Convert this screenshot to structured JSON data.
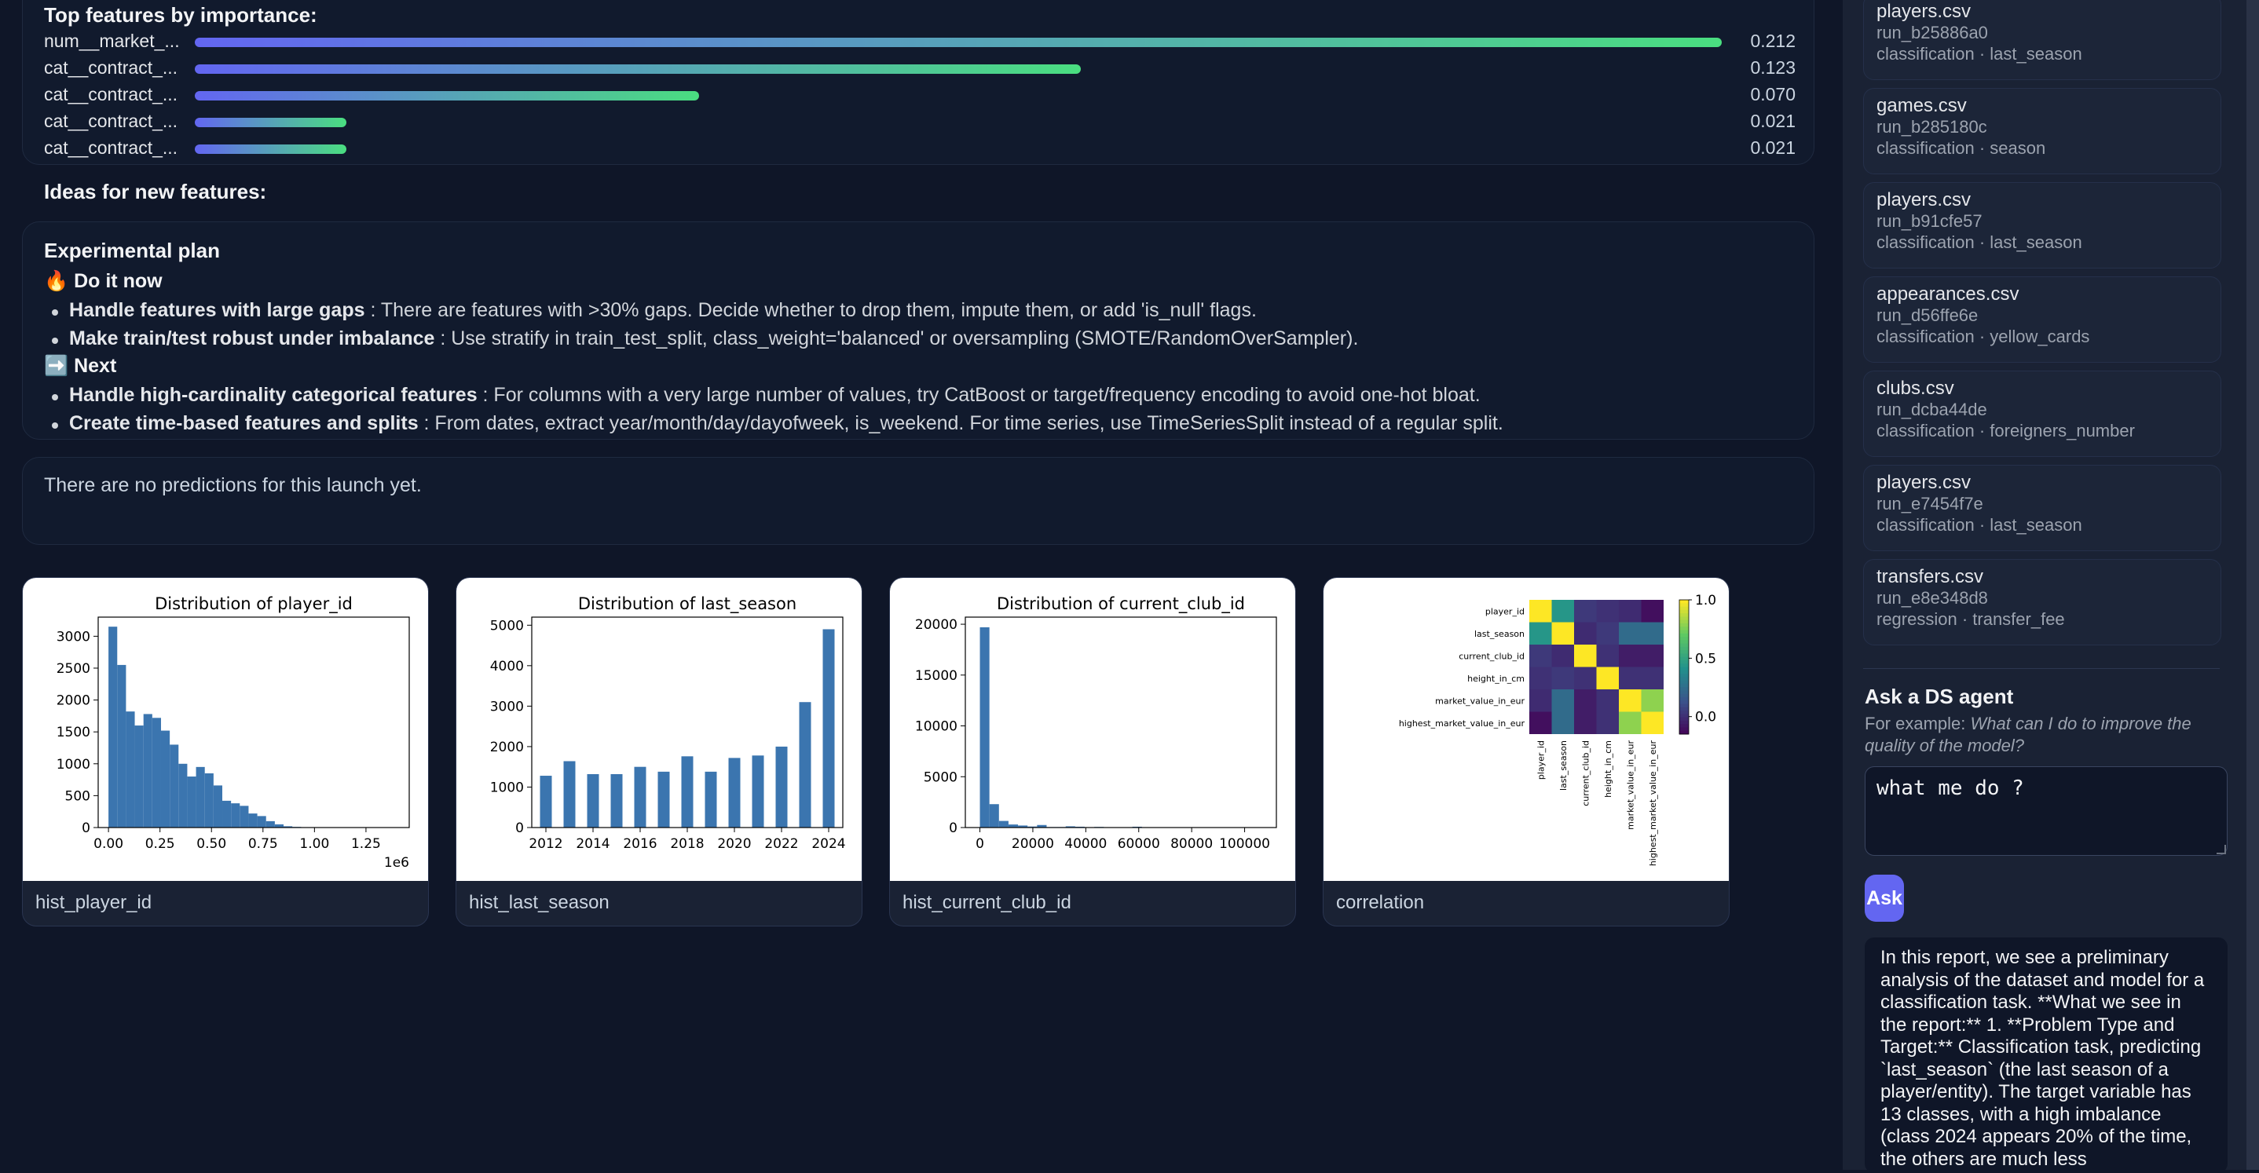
{
  "features": {
    "title": "Top features by importance:",
    "items": [
      {
        "name": "num__market_...",
        "value": "0.212",
        "frac": 0.212
      },
      {
        "name": "cat__contract_...",
        "value": "0.123",
        "frac": 0.123
      },
      {
        "name": "cat__contract_...",
        "value": "0.070",
        "frac": 0.07
      },
      {
        "name": "cat__contract_...",
        "value": "0.021",
        "frac": 0.021
      },
      {
        "name": "cat__contract_...",
        "value": "0.021",
        "frac": 0.021
      }
    ],
    "ideas_title": "Ideas for new features:"
  },
  "plan": {
    "title": "Experimental plan",
    "now_icon": "🔥",
    "now_label": "Do it now",
    "now_items": [
      {
        "bold": "Handle features with large gaps",
        "text": " : There are features with >30% gaps. Decide whether to drop them, impute them, or add 'is_null' flags."
      },
      {
        "bold": "Make train/test robust under imbalance",
        "text": " : Use stratify in train_test_split, class_weight='balanced' or oversampling (SMOTE/RandomOverSampler)."
      }
    ],
    "next_icon": "➡️",
    "next_label": "Next",
    "next_items": [
      {
        "bold": "Handle high-cardinality categorical features",
        "text": " : For columns with a very large number of values, try CatBoost or target/frequency encoding to avoid one-hot bloat."
      },
      {
        "bold": "Create time-based features and splits",
        "text": " : From dates, extract year/month/day/dayofweek, is_weekend. For time series, use TimeSeriesSplit instead of a regular split."
      }
    ]
  },
  "predictions": {
    "empty_text": "There are no predictions for this launch yet."
  },
  "charts": [
    {
      "caption": "hist_player_id"
    },
    {
      "caption": "hist_last_season"
    },
    {
      "caption": "hist_current_club_id"
    },
    {
      "caption": "correlation"
    }
  ],
  "chart_data": [
    {
      "type": "bar",
      "title": "Distribution of player_id",
      "x_offset_label": "1e6",
      "xlim": [
        -0.05,
        1.46
      ],
      "ylim": [
        0,
        3300
      ],
      "xticks": [
        "0.00",
        "0.25",
        "0.50",
        "0.75",
        "1.00",
        "1.25"
      ],
      "xtick_values": [
        0,
        0.25,
        0.5,
        0.75,
        1.0,
        1.25
      ],
      "yticks": [
        "0",
        "500",
        "1000",
        "1500",
        "2000",
        "2500",
        "3000"
      ],
      "ytick_values": [
        0,
        500,
        1000,
        1500,
        2000,
        2500,
        3000
      ],
      "bin_start": 0.0,
      "bin_width": 0.0425,
      "values": [
        3150,
        2550,
        1820,
        1600,
        1780,
        1720,
        1520,
        1300,
        1000,
        800,
        950,
        850,
        660,
        420,
        380,
        340,
        220,
        180,
        100,
        50,
        20,
        10,
        5
      ]
    },
    {
      "type": "bar",
      "title": "Distribution of last_season",
      "xlim": [
        2011.4,
        2024.6
      ],
      "ylim": [
        0,
        5200
      ],
      "xticks": [
        "2012",
        "2014",
        "2016",
        "2018",
        "2020",
        "2022",
        "2024"
      ],
      "xtick_values": [
        2012,
        2014,
        2016,
        2018,
        2020,
        2022,
        2024
      ],
      "yticks": [
        "0",
        "1000",
        "2000",
        "3000",
        "4000",
        "5000"
      ],
      "ytick_values": [
        0,
        1000,
        2000,
        3000,
        4000,
        5000
      ],
      "x": [
        2012,
        2013,
        2014,
        2015,
        2016,
        2017,
        2018,
        2019,
        2020,
        2021,
        2022,
        2023,
        2024
      ],
      "values": [
        1280,
        1640,
        1320,
        1320,
        1500,
        1380,
        1760,
        1380,
        1720,
        1780,
        2000,
        3100,
        4900
      ]
    },
    {
      "type": "bar",
      "title": "Distribution of current_club_id",
      "xlim": [
        -5500,
        112000
      ],
      "ylim": [
        0,
        20700
      ],
      "xticks": [
        "0",
        "20000",
        "40000",
        "60000",
        "80000",
        "100000"
      ],
      "xtick_values": [
        0,
        20000,
        40000,
        60000,
        80000,
        100000
      ],
      "yticks": [
        "0",
        "5000",
        "10000",
        "15000",
        "20000"
      ],
      "ytick_values": [
        0,
        5000,
        10000,
        15000,
        20000
      ],
      "bin_start": 0,
      "bin_width": 3600,
      "values": [
        19700,
        2300,
        650,
        300,
        200,
        100,
        250,
        50,
        50,
        120,
        80,
        0,
        60,
        0,
        0,
        0,
        80
      ]
    },
    {
      "type": "heatmap",
      "labels": [
        "player_id",
        "last_season",
        "current_club_id",
        "height_in_cm",
        "market_value_in_eur",
        "highest_market_value_in_eur"
      ],
      "colorbar_ticks": [
        "1.0",
        "0.5",
        "0.0"
      ],
      "colorbar_values": [
        1.0,
        0.5,
        0.0
      ],
      "vmin": -0.15,
      "vmax": 1.0,
      "matrix": [
        [
          1.0,
          0.45,
          0.05,
          0.02,
          0.0,
          -0.1
        ],
        [
          0.45,
          1.0,
          0.0,
          0.05,
          0.25,
          0.25
        ],
        [
          0.05,
          0.0,
          1.0,
          0.02,
          -0.05,
          -0.05
        ],
        [
          0.02,
          0.05,
          0.02,
          1.0,
          0.02,
          0.02
        ],
        [
          0.0,
          0.25,
          -0.05,
          0.02,
          1.0,
          0.8
        ],
        [
          -0.1,
          0.25,
          -0.05,
          0.02,
          0.8,
          1.0
        ]
      ]
    }
  ],
  "sidebar": {
    "runs": [
      {
        "file": "players.csv",
        "id": "run_b25886a0",
        "meta": "classification · last_season"
      },
      {
        "file": "games.csv",
        "id": "run_b285180c",
        "meta": "classification · season"
      },
      {
        "file": "players.csv",
        "id": "run_b91cfe57",
        "meta": "classification · last_season"
      },
      {
        "file": "appearances.csv",
        "id": "run_d56ffe6e",
        "meta": "classification · yellow_cards"
      },
      {
        "file": "clubs.csv",
        "id": "run_dcba44de",
        "meta": "classification · foreigners_number"
      },
      {
        "file": "players.csv",
        "id": "run_e7454f7e",
        "meta": "classification · last_season"
      },
      {
        "file": "transfers.csv",
        "id": "run_e8e348d8",
        "meta": "regression · transfer_fee"
      }
    ],
    "ask_title": "Ask a DS agent",
    "ask_hint_prefix": "For example: ",
    "ask_hint_example": "What can I do to improve the quality of the model?",
    "question_value": "what me do ?",
    "ask_button": "Ask",
    "answer": "In this report, we see a preliminary analysis of the dataset and model for a classification task. **What we see in the report:** 1. **Problem Type and Target:** Classification task, predicting `last_season` (the last season of a player/entity). The target variable has 13 classes, with a high imbalance (class 2024 appears 20% of the time, the others are much less"
  },
  "colors": {
    "background": "#0f1628",
    "sidebar": "#1a2234",
    "accent": "#6366f1",
    "bar_blue": "#3b75af"
  }
}
